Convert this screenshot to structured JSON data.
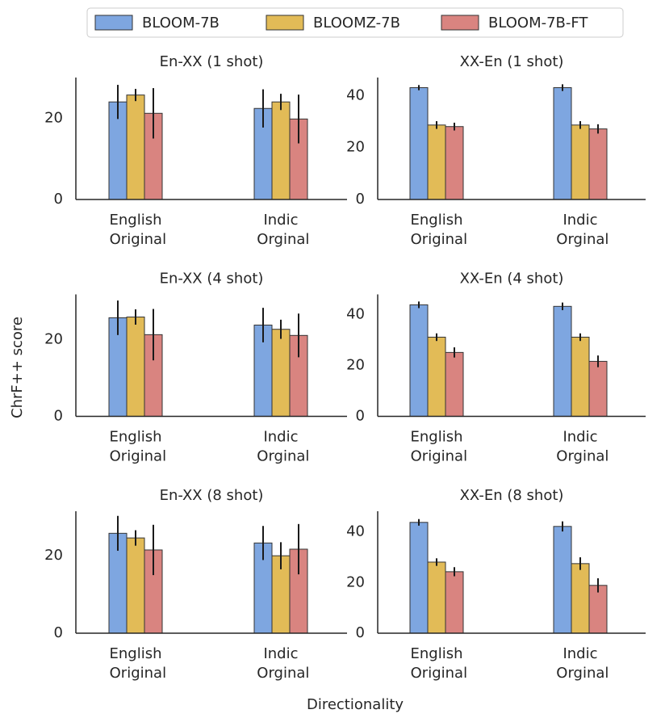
{
  "ylabel": "ChrF++ score",
  "xlabel": "Directionality",
  "chart_data": [
    {
      "type": "bar",
      "title": "En-XX (1 shot)",
      "categories": [
        "English Original",
        "Indic Orginal"
      ],
      "ylim": [
        0,
        30
      ],
      "yticks": [
        0,
        20
      ],
      "series": [
        {
          "name": "BLOOM-7B",
          "color": "#7ea6e0",
          "values": [
            24.0,
            22.4
          ],
          "errors": [
            4.2,
            4.7
          ]
        },
        {
          "name": "BLOOMZ-7B",
          "color": "#e2bb57",
          "values": [
            25.7,
            24.0
          ],
          "errors": [
            1.5,
            2.0
          ]
        },
        {
          "name": "BLOOM-7B-FT",
          "color": "#d98480",
          "values": [
            21.2,
            19.8
          ],
          "errors": [
            6.2,
            6.0
          ]
        }
      ]
    },
    {
      "type": "bar",
      "title": "XX-En (1 shot)",
      "categories": [
        "English Original",
        "Indic Orginal"
      ],
      "ylim": [
        0,
        47
      ],
      "yticks": [
        0,
        20,
        40
      ],
      "series": [
        {
          "name": "BLOOM-7B",
          "color": "#7ea6e0",
          "values": [
            43.1,
            43.1
          ],
          "errors": [
            1.0,
            1.3
          ]
        },
        {
          "name": "BLOOMZ-7B",
          "color": "#e2bb57",
          "values": [
            28.7,
            28.7
          ],
          "errors": [
            1.5,
            1.5
          ]
        },
        {
          "name": "BLOOM-7B-FT",
          "color": "#d98480",
          "values": [
            28.1,
            27.2
          ],
          "errors": [
            1.5,
            1.8
          ]
        }
      ]
    },
    {
      "type": "bar",
      "title": "En-XX (4 shot)",
      "categories": [
        "English Original",
        "Indic Orginal"
      ],
      "ylim": [
        0,
        31.8
      ],
      "yticks": [
        0,
        20
      ],
      "series": [
        {
          "name": "BLOOM-7B",
          "color": "#7ea6e0",
          "values": [
            25.7,
            23.8
          ],
          "errors": [
            4.5,
            4.5
          ]
        },
        {
          "name": "BLOOMZ-7B",
          "color": "#e2bb57",
          "values": [
            25.9,
            22.7
          ],
          "errors": [
            2.0,
            2.5
          ]
        },
        {
          "name": "BLOOM-7B-FT",
          "color": "#d98480",
          "values": [
            21.3,
            21.1
          ],
          "errors": [
            6.7,
            5.7
          ]
        }
      ]
    },
    {
      "type": "bar",
      "title": "XX-En (4 shot)",
      "categories": [
        "English Original",
        "Indic Orginal"
      ],
      "ylim": [
        0,
        47.9
      ],
      "yticks": [
        0,
        20,
        40
      ],
      "series": [
        {
          "name": "BLOOM-7B",
          "color": "#7ea6e0",
          "values": [
            43.8,
            43.2
          ],
          "errors": [
            1.3,
            1.5
          ]
        },
        {
          "name": "BLOOMZ-7B",
          "color": "#e2bb57",
          "values": [
            31.1,
            31.1
          ],
          "errors": [
            1.5,
            1.5
          ]
        },
        {
          "name": "BLOOM-7B-FT",
          "color": "#d98480",
          "values": [
            25.1,
            21.6
          ],
          "errors": [
            2.0,
            2.3
          ]
        }
      ]
    },
    {
      "type": "bar",
      "title": "En-XX (8 shot)",
      "categories": [
        "English Original",
        "Indic Orginal"
      ],
      "ylim": [
        0,
        31.5
      ],
      "yticks": [
        0,
        20
      ],
      "series": [
        {
          "name": "BLOOM-7B",
          "color": "#7ea6e0",
          "values": [
            25.8,
            23.3
          ],
          "errors": [
            4.5,
            4.4
          ]
        },
        {
          "name": "BLOOMZ-7B",
          "color": "#e2bb57",
          "values": [
            24.6,
            20.0
          ],
          "errors": [
            2.0,
            3.5
          ]
        },
        {
          "name": "BLOOM-7B-FT",
          "color": "#d98480",
          "values": [
            21.5,
            21.7
          ],
          "errors": [
            6.5,
            6.5
          ]
        }
      ]
    },
    {
      "type": "bar",
      "title": "XX-En (8 shot)",
      "categories": [
        "English Original",
        "Indic Orginal"
      ],
      "ylim": [
        0,
        48.2
      ],
      "yticks": [
        0,
        20,
        40
      ],
      "series": [
        {
          "name": "BLOOM-7B",
          "color": "#7ea6e0",
          "values": [
            43.8,
            42.2
          ],
          "errors": [
            1.3,
            2.0
          ]
        },
        {
          "name": "BLOOMZ-7B",
          "color": "#e2bb57",
          "values": [
            28.1,
            27.5
          ],
          "errors": [
            1.5,
            2.5
          ]
        },
        {
          "name": "BLOOM-7B-FT",
          "color": "#d98480",
          "values": [
            24.3,
            18.9
          ],
          "errors": [
            1.8,
            2.8
          ]
        }
      ]
    }
  ]
}
